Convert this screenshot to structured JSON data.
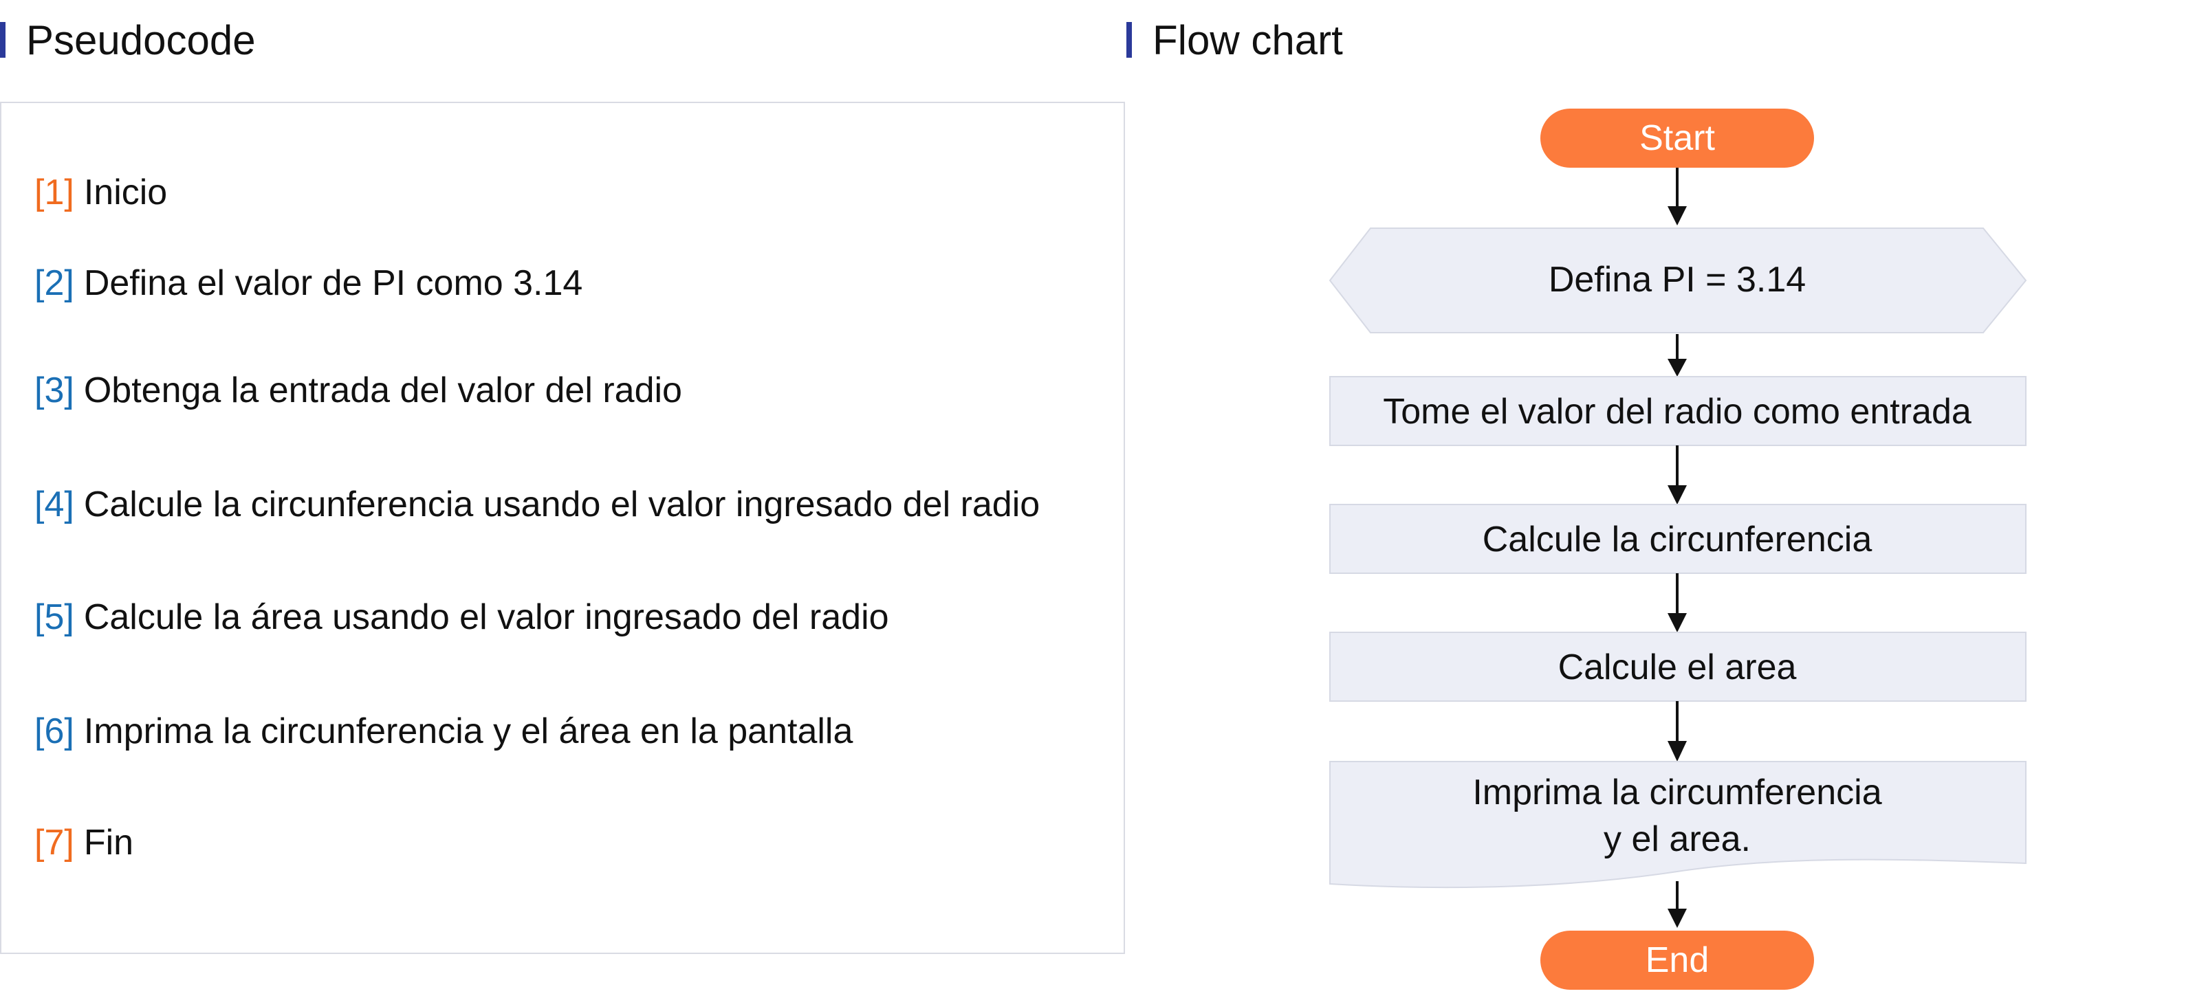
{
  "pseudocode": {
    "title": "Pseudocode",
    "steps": [
      {
        "num": "[1]",
        "text": "Inicio",
        "num_color": "#f06b1f"
      },
      {
        "num": "[2]",
        "text": "Defina el valor de PI como 3.14",
        "num_color": "#1a6fb5"
      },
      {
        "num": "[3]",
        "text": "Obtenga la entrada del valor del radio",
        "num_color": "#1a6fb5"
      },
      {
        "num": "[4]",
        "text": "Calcule la circunferencia usando el valor ingresado del radio",
        "num_color": "#1a6fb5"
      },
      {
        "num": "[5]",
        "text": "Calcule la área usando el valor ingresado del radio",
        "num_color": "#1a6fb5"
      },
      {
        "num": "[6]",
        "text": "Imprima la circunferencia y el área en la pantalla",
        "num_color": "#1a6fb5"
      },
      {
        "num": "[7]",
        "text": "Fin",
        "num_color": "#f06b1f"
      }
    ]
  },
  "flowchart": {
    "title": "Flow chart",
    "colors": {
      "terminal": "#fc7b3c",
      "process_fill": "#eceef6",
      "process_stroke": "#d6d9e4",
      "arrow": "#111111",
      "accent_bar": "#2b3a9a"
    },
    "nodes": {
      "start": "Start",
      "define": "Defina PI = 3.14",
      "input": "Tome el valor del radio como entrada",
      "circ": "Calcule la circunferencia",
      "area": "Calcule el area",
      "print_line1": "Imprima la circumferencia",
      "print_line2": "y el area.",
      "end": "End"
    }
  }
}
